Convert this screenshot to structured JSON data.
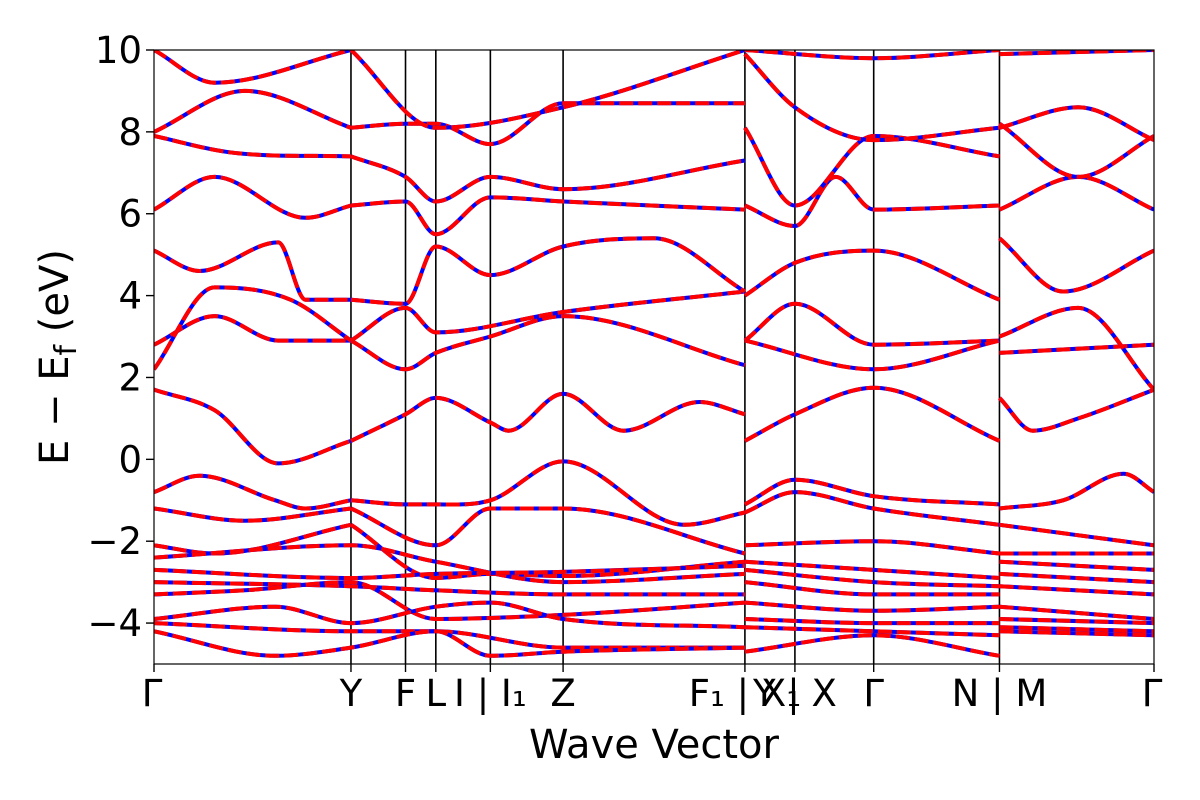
{
  "chart_data": {
    "type": "line",
    "title": "",
    "xlabel": "Wave Vector",
    "ylabel": "E − E_f (eV)",
    "ylabel_parts": {
      "main": "E  −  E",
      "sub": "f",
      "unit": " (eV)"
    },
    "ylim": [
      -5,
      10
    ],
    "yticks": [
      -4,
      -2,
      0,
      2,
      4,
      6,
      8,
      10
    ],
    "ytick_labels": [
      "−4",
      "−2",
      "0",
      "2",
      "4",
      "6",
      "8",
      "10"
    ],
    "grid": false,
    "kpath": {
      "points": [
        0,
        1.3,
        1.66,
        1.86,
        2.22,
        2.7,
        3.9,
        4.23,
        4.75,
        5.58,
        6.6
      ],
      "labels": [
        "Γ",
        "Y",
        "F",
        "L",
        "I | I₁",
        "Z",
        "F₁ | X₁",
        "Y | X",
        "Γ",
        "N | M",
        "Γ"
      ],
      "vlines": [
        1.3,
        1.66,
        1.86,
        2.22,
        2.7,
        3.9,
        4.23,
        4.75,
        5.58
      ]
    },
    "series_styles": [
      {
        "color": "#0000ff",
        "dash": "solid"
      },
      {
        "color": "#ff0000",
        "dash": "dashed"
      }
    ],
    "bands": [
      {
        "x": [
          0,
          0.4,
          0.82,
          1.3
        ],
        "y": [
          1.7,
          1.2,
          -0.1,
          0.45
        ]
      },
      {
        "x": [
          1.3,
          1.66,
          1.86,
          2.22,
          2.34,
          2.7,
          3.1,
          3.6,
          3.9
        ],
        "y": [
          0.45,
          1.1,
          1.5,
          0.9,
          0.7,
          1.6,
          0.7,
          1.4,
          1.1
        ]
      },
      {
        "x": [
          3.9,
          4.23,
          4.75,
          5.58
        ],
        "y": [
          0.45,
          1.1,
          1.75,
          0.45
        ]
      },
      {
        "x": [
          5.58,
          5.8,
          6.1,
          6.6
        ],
        "y": [
          1.5,
          0.7,
          1.0,
          1.7
        ]
      },
      {
        "x": [
          0,
          0.3,
          0.8,
          1.0,
          1.3
        ],
        "y": [
          -0.8,
          -0.4,
          -1.0,
          -1.2,
          -1.0
        ]
      },
      {
        "x": [
          1.3,
          1.66,
          1.86,
          2.22,
          2.7,
          3.5,
          3.9
        ],
        "y": [
          -1.0,
          -1.1,
          -1.1,
          -1.0,
          -0.05,
          -1.6,
          -1.3
        ]
      },
      {
        "x": [
          3.9,
          4.23,
          4.75,
          5.58
        ],
        "y": [
          -1.1,
          -0.5,
          -0.9,
          -1.1
        ]
      },
      {
        "x": [
          5.58,
          6.0,
          6.4,
          6.6
        ],
        "y": [
          -1.2,
          -1.0,
          -0.35,
          -0.8
        ]
      },
      {
        "x": [
          0,
          0.6,
          1.3
        ],
        "y": [
          -1.2,
          -1.5,
          -1.2
        ]
      },
      {
        "x": [
          1.3,
          1.86,
          2.22,
          2.7,
          3.9
        ],
        "y": [
          -1.2,
          -2.1,
          -1.2,
          -1.2,
          -2.3
        ]
      },
      {
        "x": [
          3.9,
          4.23,
          4.75,
          5.58
        ],
        "y": [
          -1.3,
          -0.8,
          -1.2,
          -1.6
        ]
      },
      {
        "x": [
          5.58,
          6.6
        ],
        "y": [
          -1.6,
          -2.1
        ]
      },
      {
        "x": [
          0,
          0.4,
          1.3
        ],
        "y": [
          -2.1,
          -2.3,
          -1.6
        ]
      },
      {
        "x": [
          1.3,
          1.86,
          2.22,
          2.7,
          3.9
        ],
        "y": [
          -1.6,
          -2.9,
          -2.8,
          -2.85,
          -2.5
        ]
      },
      {
        "x": [
          3.9,
          4.75,
          5.58
        ],
        "y": [
          -2.1,
          -2.0,
          -2.3
        ]
      },
      {
        "x": [
          5.58,
          6.6
        ],
        "y": [
          -2.3,
          -2.3
        ]
      },
      {
        "x": [
          0,
          1.3,
          1.86,
          2.7,
          3.9
        ],
        "y": [
          -2.4,
          -2.1,
          -2.5,
          -3.0,
          -2.8
        ]
      },
      {
        "x": [
          3.9,
          4.75,
          5.58
        ],
        "y": [
          -2.5,
          -2.7,
          -2.9
        ]
      },
      {
        "x": [
          5.58,
          6.6
        ],
        "y": [
          -2.5,
          -2.7
        ]
      },
      {
        "x": [
          0,
          1.3,
          1.86,
          2.7,
          3.9
        ],
        "y": [
          -2.7,
          -2.9,
          -2.8,
          -2.75,
          -2.6
        ]
      },
      {
        "x": [
          3.9,
          4.75,
          5.58
        ],
        "y": [
          -2.7,
          -3.0,
          -3.1
        ]
      },
      {
        "x": [
          5.58,
          6.6
        ],
        "y": [
          -2.8,
          -3.0
        ]
      },
      {
        "x": [
          0,
          1.3,
          1.86,
          2.7,
          3.9
        ],
        "y": [
          -3.0,
          -3.1,
          -3.2,
          -3.3,
          -3.3
        ]
      },
      {
        "x": [
          3.9,
          4.75,
          5.58
        ],
        "y": [
          -3.0,
          -3.3,
          -3.3
        ]
      },
      {
        "x": [
          5.58,
          6.6
        ],
        "y": [
          -3.1,
          -3.3
        ]
      },
      {
        "x": [
          0,
          0.6,
          1.3,
          1.86,
          2.7,
          3.9
        ],
        "y": [
          -3.3,
          -3.2,
          -3.0,
          -3.9,
          -3.8,
          -3.5
        ]
      },
      {
        "x": [
          3.9,
          4.75,
          5.58
        ],
        "y": [
          -3.5,
          -3.7,
          -3.6
        ]
      },
      {
        "x": [
          5.58,
          6.6
        ],
        "y": [
          -3.6,
          -3.9
        ]
      },
      {
        "x": [
          0,
          0.8,
          1.3,
          1.86,
          2.22,
          2.7,
          3.9
        ],
        "y": [
          -3.9,
          -3.6,
          -4.0,
          -3.6,
          -3.5,
          -3.9,
          -4.1
        ]
      },
      {
        "x": [
          3.9,
          4.75,
          5.58
        ],
        "y": [
          -3.9,
          -4.0,
          -4.0
        ]
      },
      {
        "x": [
          5.58,
          6.6
        ],
        "y": [
          -3.9,
          -4.0
        ]
      },
      {
        "x": [
          0,
          1.3,
          1.86,
          2.7,
          3.9
        ],
        "y": [
          -4.0,
          -4.2,
          -4.2,
          -4.6,
          -4.6
        ]
      },
      {
        "x": [
          3.9,
          4.75,
          5.58
        ],
        "y": [
          -4.1,
          -4.2,
          -4.3
        ]
      },
      {
        "x": [
          5.58,
          6.6
        ],
        "y": [
          -4.1,
          -4.2
        ]
      },
      {
        "x": [
          0,
          0.8,
          1.3,
          1.86,
          2.22,
          2.7,
          3.9
        ],
        "y": [
          -4.2,
          -4.8,
          -4.6,
          -4.2,
          -4.8,
          -4.7,
          -4.6
        ]
      },
      {
        "x": [
          3.9,
          4.75,
          5.58
        ],
        "y": [
          -4.7,
          -4.3,
          -4.8
        ]
      },
      {
        "x": [
          5.58,
          6.6
        ],
        "y": [
          -4.2,
          -4.3
        ]
      },
      {
        "x": [
          0,
          0.4,
          0.82,
          1.3
        ],
        "y": [
          2.8,
          3.5,
          2.9,
          2.9
        ]
      },
      {
        "x": [
          1.3,
          1.66,
          1.86,
          2.22,
          2.7,
          3.9
        ],
        "y": [
          2.9,
          2.2,
          2.6,
          3.0,
          3.5,
          2.3
        ]
      },
      {
        "x": [
          3.9,
          4.23,
          4.75,
          5.58
        ],
        "y": [
          2.9,
          3.8,
          2.8,
          2.9
        ]
      },
      {
        "x": [
          5.58,
          6.6
        ],
        "y": [
          2.6,
          2.8
        ]
      },
      {
        "x": [
          0,
          0.4,
          0.9,
          1.3
        ],
        "y": [
          2.2,
          4.2,
          3.9,
          2.9
        ]
      },
      {
        "x": [
          1.3,
          1.66,
          1.86,
          2.7,
          3.9
        ],
        "y": [
          2.9,
          3.7,
          3.1,
          3.6,
          4.1
        ]
      },
      {
        "x": [
          3.9,
          4.75,
          5.58
        ],
        "y": [
          2.9,
          2.2,
          2.9
        ]
      },
      {
        "x": [
          5.58,
          6.1,
          6.6
        ],
        "y": [
          3.0,
          3.7,
          1.7
        ]
      },
      {
        "x": [
          0,
          0.3,
          0.82,
          1.0,
          1.3
        ],
        "y": [
          5.1,
          4.6,
          5.3,
          3.9,
          3.9
        ]
      },
      {
        "x": [
          1.3,
          1.66,
          1.86,
          2.22,
          2.7,
          3.3,
          3.9
        ],
        "y": [
          3.9,
          3.8,
          5.2,
          4.5,
          5.2,
          5.4,
          4.1
        ]
      },
      {
        "x": [
          3.9,
          4.23,
          4.75,
          5.58
        ],
        "y": [
          4.0,
          4.8,
          5.1,
          3.9
        ]
      },
      {
        "x": [
          5.58,
          6.0,
          6.6
        ],
        "y": [
          5.4,
          4.1,
          5.1
        ]
      },
      {
        "x": [
          0,
          0.4,
          1.0,
          1.3
        ],
        "y": [
          6.1,
          6.9,
          5.9,
          6.2
        ]
      },
      {
        "x": [
          1.3,
          1.66,
          1.86,
          2.22,
          2.7,
          3.9
        ],
        "y": [
          6.2,
          6.3,
          5.5,
          6.4,
          6.3,
          6.1
        ]
      },
      {
        "x": [
          3.9,
          4.23,
          4.5,
          4.75,
          5.58
        ],
        "y": [
          6.2,
          5.7,
          6.9,
          6.1,
          6.2
        ]
      },
      {
        "x": [
          5.58,
          6.1,
          6.6
        ],
        "y": [
          6.1,
          6.9,
          6.1
        ]
      },
      {
        "x": [
          0,
          0.5,
          1.3
        ],
        "y": [
          7.9,
          7.5,
          7.4
        ]
      },
      {
        "x": [
          1.3,
          1.66,
          1.86,
          2.22,
          2.7,
          3.9
        ],
        "y": [
          7.4,
          6.9,
          6.3,
          6.9,
          6.6,
          7.3
        ]
      },
      {
        "x": [
          3.9,
          4.23,
          4.75,
          5.58
        ],
        "y": [
          8.1,
          6.2,
          7.9,
          7.4
        ]
      },
      {
        "x": [
          5.58,
          6.1,
          6.6
        ],
        "y": [
          8.2,
          6.9,
          7.9
        ]
      },
      {
        "x": [
          0,
          0.6,
          1.3
        ],
        "y": [
          8.0,
          9.0,
          8.1
        ]
      },
      {
        "x": [
          1.3,
          1.66,
          1.86,
          2.22,
          2.7,
          3.9
        ],
        "y": [
          8.1,
          8.2,
          8.2,
          7.7,
          8.7,
          8.7
        ]
      },
      {
        "x": [
          3.9,
          4.23,
          4.75,
          5.58
        ],
        "y": [
          9.9,
          8.6,
          7.8,
          8.1
        ]
      },
      {
        "x": [
          5.58,
          6.1,
          6.6
        ],
        "y": [
          8.1,
          8.6,
          7.8
        ]
      },
      {
        "x": [
          0,
          0.4,
          1.3
        ],
        "y": [
          10.0,
          9.2,
          10.0
        ]
      },
      {
        "x": [
          1.3,
          1.86,
          2.7,
          3.9
        ],
        "y": [
          10.0,
          8.1,
          8.6,
          10.0
        ]
      },
      {
        "x": [
          3.9,
          4.75,
          5.58
        ],
        "y": [
          10.0,
          9.8,
          10.0
        ]
      },
      {
        "x": [
          5.58,
          6.6
        ],
        "y": [
          9.9,
          10.0
        ]
      }
    ]
  }
}
